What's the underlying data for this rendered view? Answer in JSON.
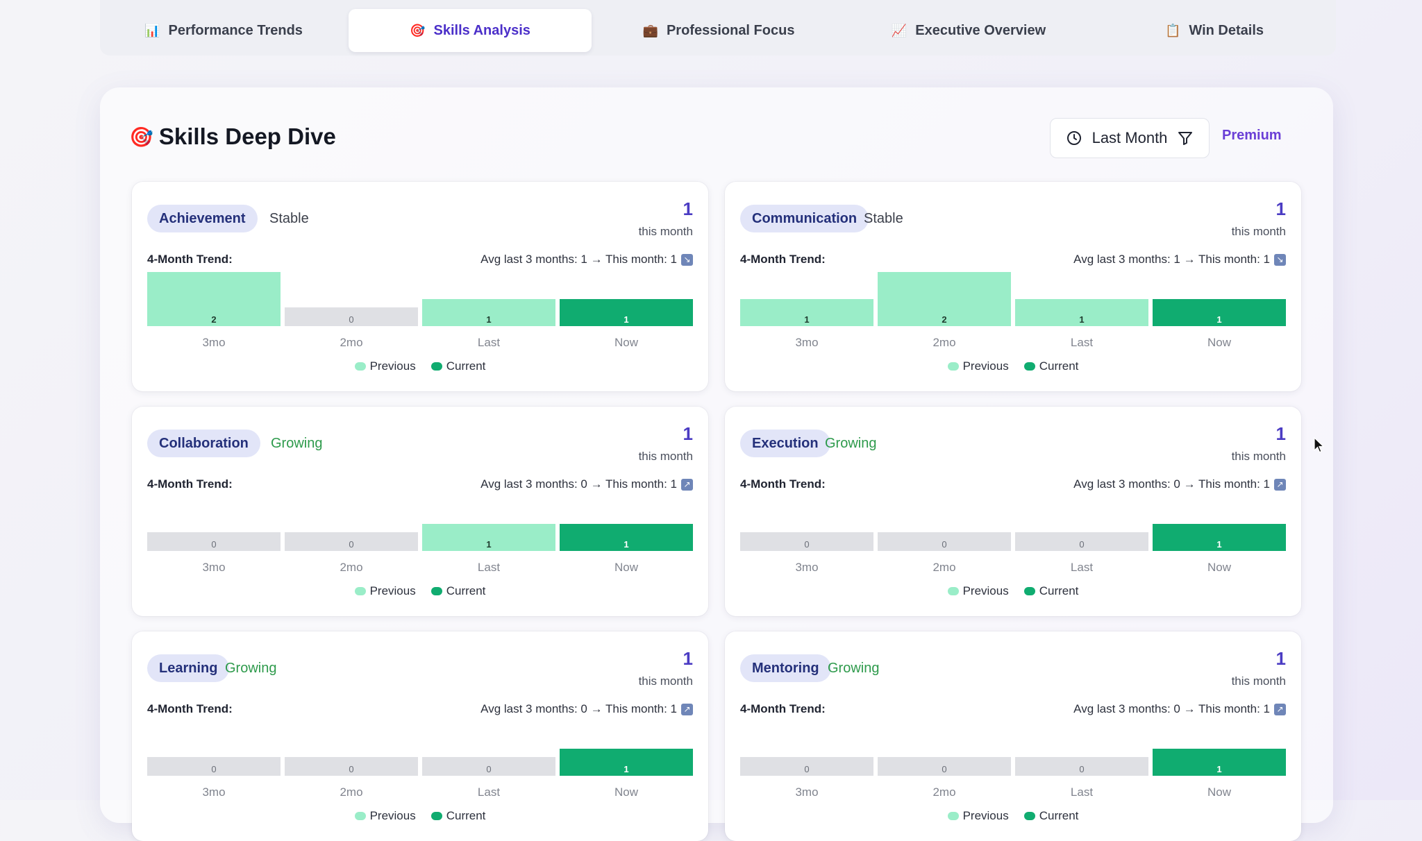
{
  "tabs": [
    {
      "icon": "📊",
      "label": "Performance Trends",
      "active": false
    },
    {
      "icon": "🎯",
      "label": "Skills Analysis",
      "active": true
    },
    {
      "icon": "💼",
      "label": "Professional Focus",
      "active": false
    },
    {
      "icon": "📈",
      "label": "Executive Overview",
      "active": false
    },
    {
      "icon": "📋",
      "label": "Win Details",
      "active": false
    }
  ],
  "panel": {
    "icon": "🎯",
    "title": "Skills Deep Dive",
    "period": "Last Month",
    "premium": "Premium"
  },
  "labels": {
    "this_month": "this month",
    "trend": "4-Month Trend:",
    "periods": [
      "3mo",
      "2mo",
      "Last",
      "Now"
    ],
    "legend_previous": "Previous",
    "legend_current": "Current"
  },
  "colors": {
    "previous": "#9aedc8",
    "current": "#10ac70",
    "zero": "#dfe0e4",
    "accent": "#4b2fc9"
  },
  "cards": [
    {
      "skill": "Achievement",
      "status": "Stable",
      "count": "1",
      "avg_text": "Avg last 3 months: 1 → This month: 1",
      "values": [
        2,
        0,
        1,
        1
      ]
    },
    {
      "skill": "Communication",
      "status": "Stable",
      "count": "1",
      "avg_text": "Avg last 3 months: 1 → This month: 1",
      "values": [
        1,
        2,
        1,
        1
      ]
    },
    {
      "skill": "Collaboration",
      "status": "Growing",
      "count": "1",
      "avg_text": "Avg last 3 months: 0 → This month: 1",
      "values": [
        0,
        0,
        1,
        1
      ]
    },
    {
      "skill": "Execution",
      "status": "Growing",
      "count": "1",
      "avg_text": "Avg last 3 months: 0 → This month: 1",
      "values": [
        0,
        0,
        0,
        1
      ]
    },
    {
      "skill": "Learning",
      "status": "Growing",
      "count": "1",
      "avg_text": "Avg last 3 months: 0 → This month: 1",
      "values": [
        0,
        0,
        0,
        1
      ]
    },
    {
      "skill": "Mentoring",
      "status": "Growing",
      "count": "1",
      "avg_text": "Avg last 3 months: 0 → This month: 1",
      "values": [
        0,
        0,
        0,
        1
      ]
    }
  ]
}
